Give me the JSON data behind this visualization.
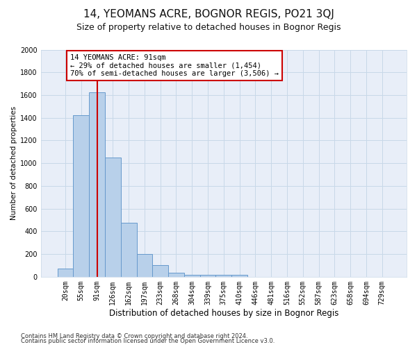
{
  "title": "14, YEOMANS ACRE, BOGNOR REGIS, PO21 3QJ",
  "subtitle": "Size of property relative to detached houses in Bognor Regis",
  "xlabel": "Distribution of detached houses by size in Bognor Regis",
  "ylabel": "Number of detached properties",
  "categories": [
    "20sqm",
    "55sqm",
    "91sqm",
    "126sqm",
    "162sqm",
    "197sqm",
    "233sqm",
    "268sqm",
    "304sqm",
    "339sqm",
    "375sqm",
    "410sqm",
    "446sqm",
    "481sqm",
    "516sqm",
    "552sqm",
    "587sqm",
    "623sqm",
    "658sqm",
    "694sqm",
    "729sqm"
  ],
  "values": [
    75,
    1425,
    1625,
    1050,
    475,
    200,
    100,
    35,
    20,
    15,
    15,
    15,
    0,
    0,
    0,
    0,
    0,
    0,
    0,
    0,
    0
  ],
  "bar_color": "#b8d0ea",
  "bar_edge_color": "#6699cc",
  "grid_color": "#c8d8e8",
  "bg_color": "#e8eef8",
  "vline_x": 2,
  "vline_color": "#cc0000",
  "annotation_text": "14 YEOMANS ACRE: 91sqm\n← 29% of detached houses are smaller (1,454)\n70% of semi-detached houses are larger (3,506) →",
  "annotation_box_color": "#ffffff",
  "annotation_box_edge": "#cc0000",
  "footer1": "Contains HM Land Registry data © Crown copyright and database right 2024.",
  "footer2": "Contains public sector information licensed under the Open Government Licence v3.0.",
  "fig_bg": "#ffffff",
  "ylim": [
    0,
    2000
  ],
  "yticks": [
    0,
    200,
    400,
    600,
    800,
    1000,
    1200,
    1400,
    1600,
    1800,
    2000
  ],
  "title_fontsize": 11,
  "subtitle_fontsize": 9,
  "xlabel_fontsize": 8.5,
  "ylabel_fontsize": 7.5,
  "tick_fontsize": 7,
  "annotation_fontsize": 7.5,
  "footer_fontsize": 6
}
